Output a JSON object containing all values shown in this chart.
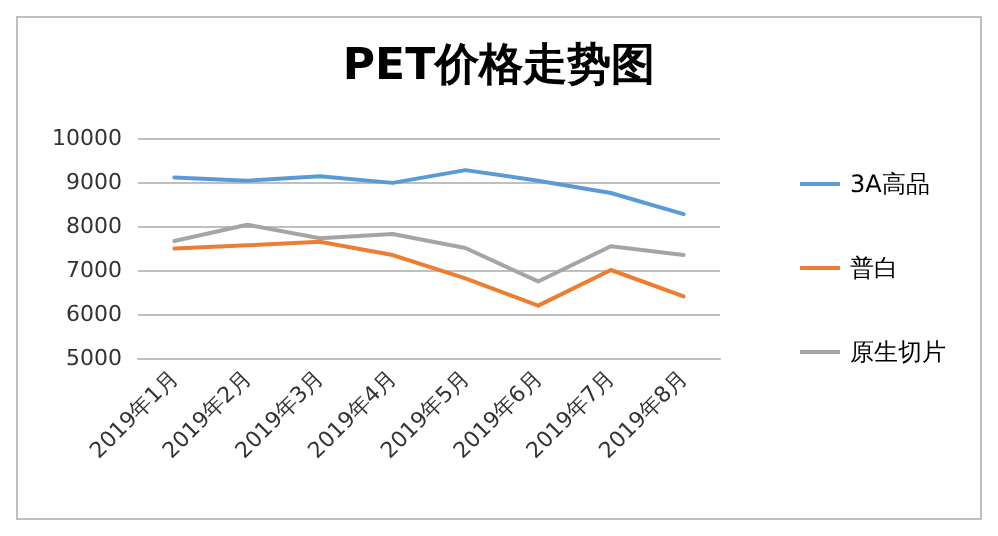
{
  "chart_data": {
    "type": "line",
    "title": "PET价格走势图",
    "categories": [
      "2019年1月",
      "2019年2月",
      "2019年3月",
      "2019年4月",
      "2019年5月",
      "2019年6月",
      "2019年7月",
      "2019年8月"
    ],
    "series": [
      {
        "name": "3A高品",
        "color": "#5b9bd5",
        "values": [
          9100,
          9030,
          9130,
          8980,
          9270,
          9030,
          8750,
          8270
        ]
      },
      {
        "name": "普白",
        "color": "#ed7d31",
        "values": [
          7490,
          7560,
          7640,
          7340,
          6810,
          6190,
          7000,
          6400
        ]
      },
      {
        "name": "原生切片",
        "color": "#a5a5a5",
        "values": [
          7660,
          8030,
          7720,
          7820,
          7500,
          6740,
          7540,
          7340
        ]
      }
    ],
    "ylim": [
      5000,
      10000
    ],
    "yticks": [
      5000,
      6000,
      7000,
      8000,
      9000,
      10000
    ],
    "grid": "y",
    "legend": "right",
    "marker": "none",
    "line_style": "solid"
  }
}
